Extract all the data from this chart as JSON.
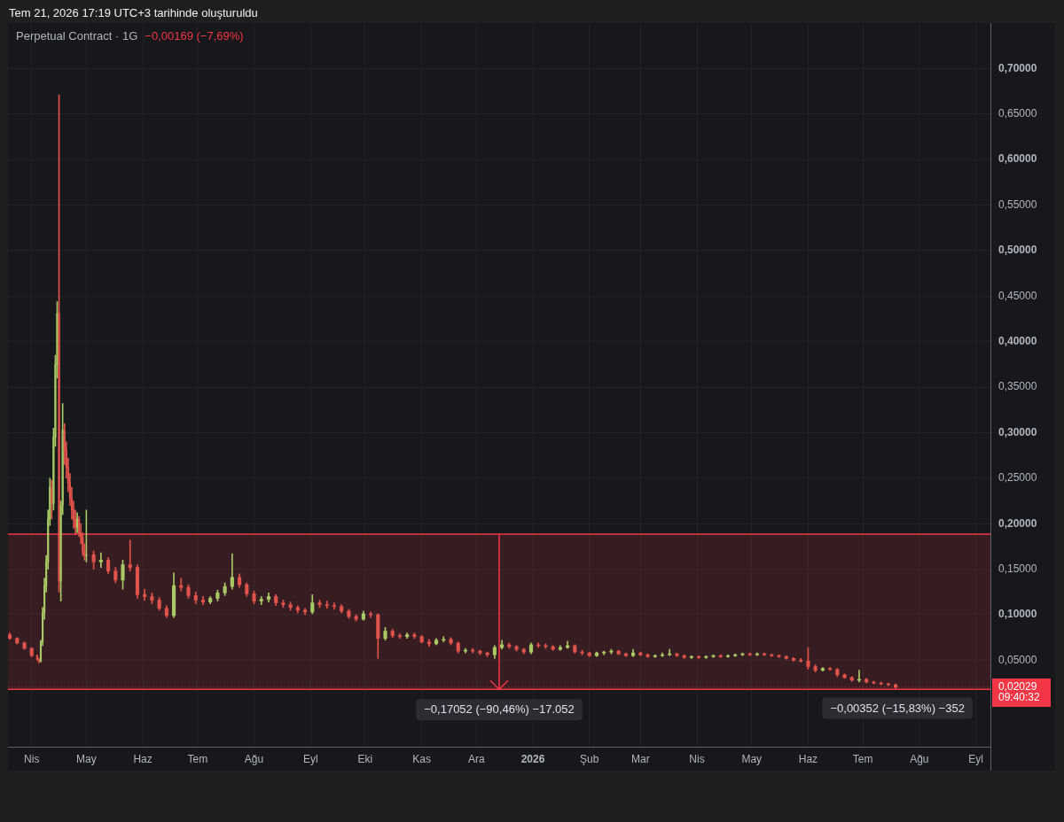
{
  "chart_data": {
    "type": "candlestick",
    "title": "Perpetual Contract · 1G",
    "subtitle": "−0,00169 (−7,69%)",
    "x": [
      "2025-03-20",
      "2025-03-24",
      "2025-03-28",
      "2025-04-01",
      "2025-04-04",
      "2025-04-05",
      "2025-04-06",
      "2025-04-07",
      "2025-04-08",
      "2025-04-09",
      "2025-04-10",
      "2025-04-11",
      "2025-04-12",
      "2025-04-13",
      "2025-04-14",
      "2025-04-15",
      "2025-04-16",
      "2025-04-17",
      "2025-04-18",
      "2025-04-19",
      "2025-04-20",
      "2025-04-21",
      "2025-04-22",
      "2025-04-23",
      "2025-04-24",
      "2025-04-25",
      "2025-04-26",
      "2025-04-27",
      "2025-04-28",
      "2025-04-29",
      "2025-04-30",
      "2025-05-01",
      "2025-05-05",
      "2025-05-09",
      "2025-05-13",
      "2025-05-17",
      "2025-05-21",
      "2025-05-25",
      "2025-05-29",
      "2025-06-02",
      "2025-06-06",
      "2025-06-10",
      "2025-06-14",
      "2025-06-18",
      "2025-06-22",
      "2025-06-26",
      "2025-06-30",
      "2025-07-04",
      "2025-07-08",
      "2025-07-12",
      "2025-07-16",
      "2025-07-20",
      "2025-07-24",
      "2025-07-28",
      "2025-08-01",
      "2025-08-05",
      "2025-08-09",
      "2025-08-13",
      "2025-08-17",
      "2025-08-21",
      "2025-08-25",
      "2025-08-29",
      "2025-09-02",
      "2025-09-06",
      "2025-09-10",
      "2025-09-14",
      "2025-09-18",
      "2025-09-22",
      "2025-09-26",
      "2025-09-30",
      "2025-10-04",
      "2025-10-08",
      "2025-10-12",
      "2025-10-16",
      "2025-10-20",
      "2025-10-24",
      "2025-10-28",
      "2025-11-01",
      "2025-11-05",
      "2025-11-09",
      "2025-11-13",
      "2025-11-17",
      "2025-11-21",
      "2025-11-25",
      "2025-11-29",
      "2025-12-03",
      "2025-12-07",
      "2025-12-11",
      "2025-12-15",
      "2025-12-19",
      "2025-12-23",
      "2025-12-27",
      "2025-12-31",
      "2026-01-04",
      "2026-01-08",
      "2026-01-12",
      "2026-01-16",
      "2026-01-20",
      "2026-01-24",
      "2026-01-28",
      "2026-02-01",
      "2026-02-05",
      "2026-02-09",
      "2026-02-13",
      "2026-02-17",
      "2026-02-21",
      "2026-02-25",
      "2026-03-01",
      "2026-03-05",
      "2026-03-09",
      "2026-03-13",
      "2026-03-17",
      "2026-03-21",
      "2026-03-25",
      "2026-03-29",
      "2026-04-02",
      "2026-04-06",
      "2026-04-10",
      "2026-04-14",
      "2026-04-18",
      "2026-04-22",
      "2026-04-26",
      "2026-04-30",
      "2026-05-04",
      "2026-05-08",
      "2026-05-12",
      "2026-05-16",
      "2026-05-20",
      "2026-05-24",
      "2026-05-28",
      "2026-06-01",
      "2026-06-05",
      "2026-06-09",
      "2026-06-13",
      "2026-06-17",
      "2026-06-21",
      "2026-06-25",
      "2026-06-29",
      "2026-07-03",
      "2026-07-07",
      "2026-07-11",
      "2026-07-15",
      "2026-07-19"
    ],
    "ohlc": [
      [
        0.078,
        0.08,
        0.073,
        0.074
      ],
      [
        0.074,
        0.075,
        0.068,
        0.069
      ],
      [
        0.069,
        0.07,
        0.062,
        0.063
      ],
      [
        0.063,
        0.064,
        0.054,
        0.055
      ],
      [
        0.055,
        0.056,
        0.05,
        0.051
      ],
      [
        0.051,
        0.052,
        0.047,
        0.049
      ],
      [
        0.049,
        0.072,
        0.048,
        0.07
      ],
      [
        0.07,
        0.108,
        0.066,
        0.102
      ],
      [
        0.102,
        0.14,
        0.095,
        0.132
      ],
      [
        0.132,
        0.165,
        0.125,
        0.158
      ],
      [
        0.158,
        0.215,
        0.15,
        0.205
      ],
      [
        0.205,
        0.25,
        0.198,
        0.24
      ],
      [
        0.24,
        0.248,
        0.205,
        0.222
      ],
      [
        0.222,
        0.305,
        0.215,
        0.295
      ],
      [
        0.295,
        0.385,
        0.285,
        0.375
      ],
      [
        0.375,
        0.444,
        0.36,
        0.431
      ],
      [
        0.431,
        0.671,
        0.125,
        0.137
      ],
      [
        0.137,
        0.225,
        0.115,
        0.22
      ],
      [
        0.22,
        0.332,
        0.21,
        0.303
      ],
      [
        0.303,
        0.31,
        0.265,
        0.28
      ],
      [
        0.28,
        0.29,
        0.25,
        0.262
      ],
      [
        0.262,
        0.272,
        0.235,
        0.245
      ],
      [
        0.245,
        0.255,
        0.22,
        0.228
      ],
      [
        0.228,
        0.24,
        0.205,
        0.215
      ],
      [
        0.215,
        0.225,
        0.195,
        0.205
      ],
      [
        0.205,
        0.215,
        0.188,
        0.196
      ],
      [
        0.196,
        0.212,
        0.19,
        0.205
      ],
      [
        0.205,
        0.208,
        0.186,
        0.19
      ],
      [
        0.19,
        0.2,
        0.178,
        0.185
      ],
      [
        0.185,
        0.19,
        0.165,
        0.17
      ],
      [
        0.17,
        0.178,
        0.16,
        0.165
      ],
      [
        0.165,
        0.215,
        0.158,
        0.166
      ],
      [
        0.166,
        0.17,
        0.15,
        0.158
      ],
      [
        0.158,
        0.168,
        0.152,
        0.16
      ],
      [
        0.16,
        0.163,
        0.145,
        0.148
      ],
      [
        0.148,
        0.152,
        0.135,
        0.138
      ],
      [
        0.138,
        0.16,
        0.128,
        0.155
      ],
      [
        0.155,
        0.182,
        0.148,
        0.152
      ],
      [
        0.152,
        0.155,
        0.118,
        0.122
      ],
      [
        0.122,
        0.128,
        0.116,
        0.12
      ],
      [
        0.12,
        0.124,
        0.112,
        0.116
      ],
      [
        0.116,
        0.119,
        0.105,
        0.107
      ],
      [
        0.107,
        0.11,
        0.097,
        0.099
      ],
      [
        0.099,
        0.146,
        0.097,
        0.132
      ],
      [
        0.132,
        0.14,
        0.126,
        0.13
      ],
      [
        0.13,
        0.133,
        0.118,
        0.121
      ],
      [
        0.121,
        0.125,
        0.112,
        0.116
      ],
      [
        0.116,
        0.12,
        0.111,
        0.114
      ],
      [
        0.114,
        0.12,
        0.112,
        0.118
      ],
      [
        0.118,
        0.127,
        0.115,
        0.124
      ],
      [
        0.124,
        0.135,
        0.121,
        0.131
      ],
      [
        0.131,
        0.167,
        0.128,
        0.141
      ],
      [
        0.141,
        0.145,
        0.13,
        0.133
      ],
      [
        0.133,
        0.135,
        0.12,
        0.123
      ],
      [
        0.123,
        0.126,
        0.112,
        0.115
      ],
      [
        0.115,
        0.12,
        0.111,
        0.117
      ],
      [
        0.117,
        0.124,
        0.114,
        0.12
      ],
      [
        0.12,
        0.122,
        0.11,
        0.113
      ],
      [
        0.113,
        0.116,
        0.108,
        0.111
      ],
      [
        0.111,
        0.114,
        0.105,
        0.108
      ],
      [
        0.108,
        0.11,
        0.102,
        0.105
      ],
      [
        0.105,
        0.107,
        0.1,
        0.103
      ],
      [
        0.103,
        0.122,
        0.101,
        0.113
      ],
      [
        0.113,
        0.116,
        0.108,
        0.111
      ],
      [
        0.111,
        0.115,
        0.107,
        0.11
      ],
      [
        0.11,
        0.113,
        0.106,
        0.109
      ],
      [
        0.109,
        0.111,
        0.102,
        0.104
      ],
      [
        0.104,
        0.106,
        0.096,
        0.098
      ],
      [
        0.098,
        0.1,
        0.093,
        0.095
      ],
      [
        0.095,
        0.104,
        0.094,
        0.101
      ],
      [
        0.101,
        0.103,
        0.097,
        0.1
      ],
      [
        0.1,
        0.101,
        0.052,
        0.074
      ],
      [
        0.074,
        0.086,
        0.072,
        0.082
      ],
      [
        0.082,
        0.084,
        0.075,
        0.077
      ],
      [
        0.077,
        0.079,
        0.074,
        0.076
      ],
      [
        0.076,
        0.08,
        0.074,
        0.078
      ],
      [
        0.078,
        0.08,
        0.074,
        0.076
      ],
      [
        0.076,
        0.077,
        0.069,
        0.07
      ],
      [
        0.07,
        0.073,
        0.065,
        0.068
      ],
      [
        0.068,
        0.074,
        0.067,
        0.072
      ],
      [
        0.072,
        0.076,
        0.07,
        0.073
      ],
      [
        0.073,
        0.075,
        0.067,
        0.069
      ],
      [
        0.069,
        0.07,
        0.058,
        0.06
      ],
      [
        0.06,
        0.063,
        0.058,
        0.061
      ],
      [
        0.061,
        0.063,
        0.058,
        0.06
      ],
      [
        0.06,
        0.061,
        0.056,
        0.058
      ],
      [
        0.058,
        0.059,
        0.054,
        0.056
      ],
      [
        0.056,
        0.066,
        0.052,
        0.064
      ],
      [
        0.064,
        0.072,
        0.062,
        0.067
      ],
      [
        0.067,
        0.069,
        0.063,
        0.065
      ],
      [
        0.065,
        0.066,
        0.06,
        0.062
      ],
      [
        0.062,
        0.063,
        0.057,
        0.059
      ],
      [
        0.059,
        0.069,
        0.057,
        0.067
      ],
      [
        0.067,
        0.069,
        0.064,
        0.066
      ],
      [
        0.066,
        0.068,
        0.063,
        0.065
      ],
      [
        0.065,
        0.066,
        0.061,
        0.062
      ],
      [
        0.062,
        0.066,
        0.061,
        0.064
      ],
      [
        0.064,
        0.071,
        0.063,
        0.066
      ],
      [
        0.066,
        0.067,
        0.058,
        0.059
      ],
      [
        0.059,
        0.061,
        0.056,
        0.058
      ],
      [
        0.058,
        0.059,
        0.054,
        0.055
      ],
      [
        0.055,
        0.059,
        0.054,
        0.058
      ],
      [
        0.058,
        0.06,
        0.056,
        0.059
      ],
      [
        0.059,
        0.062,
        0.057,
        0.06
      ],
      [
        0.06,
        0.061,
        0.056,
        0.057
      ],
      [
        0.057,
        0.058,
        0.054,
        0.055
      ],
      [
        0.055,
        0.062,
        0.054,
        0.058
      ],
      [
        0.058,
        0.059,
        0.055,
        0.056
      ],
      [
        0.056,
        0.057,
        0.053,
        0.054
      ],
      [
        0.054,
        0.056,
        0.053,
        0.055
      ],
      [
        0.055,
        0.058,
        0.054,
        0.056
      ],
      [
        0.056,
        0.062,
        0.055,
        0.057
      ],
      [
        0.057,
        0.058,
        0.054,
        0.055
      ],
      [
        0.055,
        0.056,
        0.052,
        0.053
      ],
      [
        0.053,
        0.055,
        0.052,
        0.054
      ],
      [
        0.054,
        0.055,
        0.052,
        0.053
      ],
      [
        0.053,
        0.055,
        0.052,
        0.054
      ],
      [
        0.054,
        0.056,
        0.053,
        0.055
      ],
      [
        0.055,
        0.056,
        0.053,
        0.054
      ],
      [
        0.054,
        0.056,
        0.053,
        0.055
      ],
      [
        0.055,
        0.057,
        0.054,
        0.056
      ],
      [
        0.056,
        0.058,
        0.055,
        0.057
      ],
      [
        0.057,
        0.058,
        0.055,
        0.056
      ],
      [
        0.056,
        0.058,
        0.055,
        0.057
      ],
      [
        0.057,
        0.058,
        0.055,
        0.056
      ],
      [
        0.056,
        0.057,
        0.054,
        0.055
      ],
      [
        0.055,
        0.056,
        0.053,
        0.054
      ],
      [
        0.054,
        0.055,
        0.051,
        0.052
      ],
      [
        0.052,
        0.053,
        0.049,
        0.05
      ],
      [
        0.05,
        0.052,
        0.048,
        0.049
      ],
      [
        0.049,
        0.064,
        0.04,
        0.043
      ],
      [
        0.043,
        0.045,
        0.037,
        0.039
      ],
      [
        0.039,
        0.042,
        0.038,
        0.041
      ],
      [
        0.041,
        0.042,
        0.039,
        0.04
      ],
      [
        0.04,
        0.041,
        0.032,
        0.034
      ],
      [
        0.034,
        0.035,
        0.03,
        0.031
      ],
      [
        0.031,
        0.032,
        0.027,
        0.028
      ],
      [
        0.028,
        0.039,
        0.026,
        0.029
      ],
      [
        0.029,
        0.03,
        0.025,
        0.026
      ],
      [
        0.026,
        0.027,
        0.024,
        0.025
      ],
      [
        0.025,
        0.026,
        0.023,
        0.024
      ],
      [
        0.024,
        0.025,
        0.022,
        0.023
      ],
      [
        0.023,
        0.024,
        0.019,
        0.02029
      ]
    ],
    "colors": [
      "#e0534a",
      "#e0534a",
      "#e0534a",
      "#e0534a",
      "#e0534a",
      "#e0534a",
      "#a8c964",
      "#a8c964",
      "#a8c964",
      "#a8c964",
      "#a8c964",
      "#a8c964",
      "#e0534a",
      "#a8c964",
      "#a8c964",
      "#a8c964",
      "#e0534a",
      "#a8c964",
      "#a8c964",
      "#e0534a",
      "#e0534a",
      "#e0534a",
      "#e0534a",
      "#e0534a",
      "#e0534a",
      "#e0534a",
      "#a8c964",
      "#e0534a",
      "#e0534a",
      "#e0534a",
      "#e0534a",
      "#a8c964",
      "#e0534a",
      "#a8c964",
      "#e0534a",
      "#e0534a",
      "#a8c964",
      "#e0534a",
      "#e0534a",
      "#e0534a",
      "#e0534a",
      "#e0534a",
      "#e0534a",
      "#a8c964",
      "#e0534a",
      "#e0534a",
      "#e0534a",
      "#e0534a",
      "#a8c964",
      "#a8c964",
      "#a8c964",
      "#a8c964",
      "#e0534a",
      "#e0534a",
      "#e0534a",
      "#a8c964",
      "#a8c964",
      "#e0534a",
      "#e0534a",
      "#e0534a",
      "#e0534a",
      "#e0534a",
      "#a8c964",
      "#e0534a",
      "#e0534a",
      "#e0534a",
      "#e0534a",
      "#e0534a",
      "#e0534a",
      "#a8c964",
      "#e0534a",
      "#e0534a",
      "#a8c964",
      "#e0534a",
      "#e0534a",
      "#a8c964",
      "#e0534a",
      "#e0534a",
      "#e0534a",
      "#a8c964",
      "#a8c964",
      "#e0534a",
      "#e0534a",
      "#a8c964",
      "#e0534a",
      "#e0534a",
      "#e0534a",
      "#a8c964",
      "#a8c964",
      "#e0534a",
      "#e0534a",
      "#e0534a",
      "#a8c964",
      "#e0534a",
      "#e0534a",
      "#e0534a",
      "#a8c964",
      "#a8c964",
      "#e0534a",
      "#e0534a",
      "#e0534a",
      "#a8c964",
      "#a8c964",
      "#a8c964",
      "#e0534a",
      "#e0534a",
      "#a8c964",
      "#e0534a",
      "#e0534a",
      "#a8c964",
      "#a8c964",
      "#a8c964",
      "#e0534a",
      "#e0534a",
      "#a8c964",
      "#e0534a",
      "#a8c964",
      "#a8c964",
      "#e0534a",
      "#a8c964",
      "#a8c964",
      "#a8c964",
      "#e0534a",
      "#a8c964",
      "#e0534a",
      "#e0534a",
      "#e0534a",
      "#e0534a",
      "#e0534a",
      "#e0534a",
      "#e0534a",
      "#e0534a",
      "#a8c964",
      "#e0534a",
      "#e0534a",
      "#e0534a",
      "#e0534a",
      "#a8c964",
      "#e0534a",
      "#e0534a",
      "#e0534a",
      "#e0534a",
      "#e0534a"
    ],
    "xlim": [
      "2025-03-19",
      "2026-09-09"
    ],
    "xticks": [
      {
        "value": "2025-04-01",
        "label": "Nis"
      },
      {
        "value": "2025-05-01",
        "label": "May"
      },
      {
        "value": "2025-06-01",
        "label": "Haz"
      },
      {
        "value": "2025-07-01",
        "label": "Tem"
      },
      {
        "value": "2025-08-01",
        "label": "Ağu"
      },
      {
        "value": "2025-09-01",
        "label": "Eyl"
      },
      {
        "value": "2025-10-01",
        "label": "Eki"
      },
      {
        "value": "2025-11-01",
        "label": "Kas"
      },
      {
        "value": "2025-12-01",
        "label": "Ara"
      },
      {
        "value": "2026-01-01",
        "label": "2026"
      },
      {
        "value": "2026-02-01",
        "label": "Şub"
      },
      {
        "value": "2026-03-01",
        "label": "Mar"
      },
      {
        "value": "2026-04-01",
        "label": "Nis"
      },
      {
        "value": "2026-05-01",
        "label": "May"
      },
      {
        "value": "2026-06-01",
        "label": "Haz"
      },
      {
        "value": "2026-07-01",
        "label": "Tem"
      },
      {
        "value": "2026-08-01",
        "label": "Ağu"
      },
      {
        "value": "2026-09-01",
        "label": "Eyl"
      }
    ],
    "ylim": [
      -0.045,
      0.75
    ],
    "yticks": [
      {
        "value": 0.05,
        "label": "0,05000"
      },
      {
        "value": 0.1,
        "label": "0,10000"
      },
      {
        "value": 0.15,
        "label": "0,15000"
      },
      {
        "value": 0.2,
        "label": "0,20000"
      },
      {
        "value": 0.25,
        "label": "0,25000"
      },
      {
        "value": 0.3,
        "label": "0,30000"
      },
      {
        "value": 0.35,
        "label": "0,35000"
      },
      {
        "value": 0.4,
        "label": "0,40000"
      },
      {
        "value": 0.45,
        "label": "0,45000"
      },
      {
        "value": 0.5,
        "label": "0,50000"
      },
      {
        "value": 0.55,
        "label": "0,55000"
      },
      {
        "value": 0.6,
        "label": "0,60000"
      },
      {
        "value": 0.65,
        "label": "0,65000"
      },
      {
        "value": 0.7,
        "label": "0,70000"
      }
    ],
    "grid": true,
    "ref_lines": [
      {
        "axis": "y",
        "value": 0.02029,
        "label": "0,02029",
        "color": "#f23645",
        "line_style": "dotted"
      },
      {
        "axis": "y",
        "value": 0.1885,
        "color": "#f23645",
        "line_style": "solid"
      },
      {
        "axis": "y",
        "value": 0.01798,
        "color": "#f23645",
        "line_style": "solid"
      }
    ],
    "bands": [
      {
        "axis": "y",
        "from": 0.1885,
        "to": 0.01798,
        "label": "−0,17052 (−90,46%) −17.052",
        "color": "#f23645"
      }
    ],
    "annotations": [
      "Tem 21, 2026 17:19 UTC+3 tarihinde oluşturuldu",
      "09:40:32",
      {
        "text": "−0,00352 (−15,83%) −352",
        "x": "2026-07-20",
        "y": 0.01872
      }
    ]
  }
}
